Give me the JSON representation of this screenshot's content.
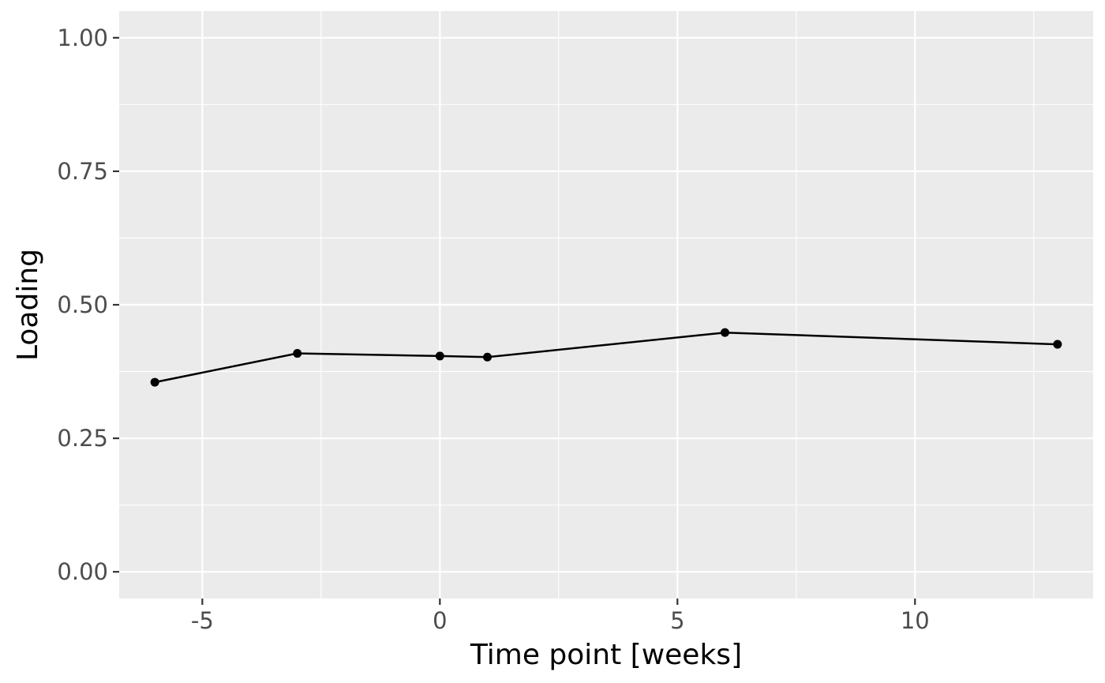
{
  "chart_data": {
    "type": "line",
    "title": "",
    "xlabel": "Time point [weeks]",
    "ylabel": "Loading",
    "xlim": [
      -6.75,
      13.75
    ],
    "ylim": [
      -0.05,
      1.05
    ],
    "x_ticks": [
      -5,
      0,
      5,
      10
    ],
    "x_tick_labels": [
      "-5",
      "0",
      "5",
      "10"
    ],
    "x_minor_ticks": [
      -2.5,
      2.5,
      7.5,
      12.5
    ],
    "y_ticks": [
      0,
      0.25,
      0.5,
      0.75,
      1.0
    ],
    "y_tick_labels": [
      "0.00",
      "0.25",
      "0.50",
      "0.75",
      "1.00"
    ],
    "y_minor_ticks": [
      0.125,
      0.375,
      0.625,
      0.875
    ],
    "grid": true,
    "legend": "none",
    "colors": {
      "panel": "#EBEBEB",
      "grid": "#FFFFFF",
      "series": "#000000"
    },
    "series": [
      {
        "x": [
          -6,
          -3,
          0,
          1,
          6,
          13
        ],
        "y": [
          0.355,
          0.409,
          0.404,
          0.402,
          0.448,
          0.426
        ]
      }
    ]
  }
}
